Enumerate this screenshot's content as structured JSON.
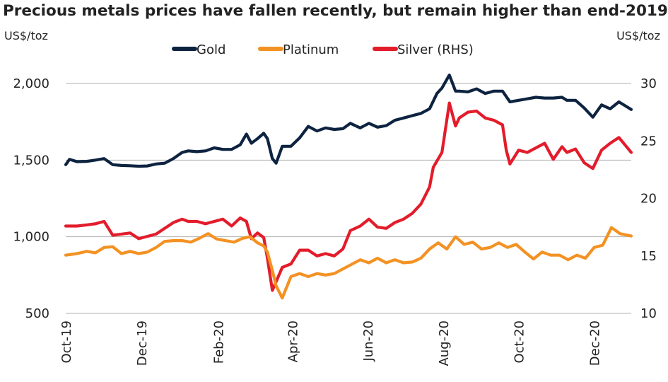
{
  "chart_data": {
    "type": "line",
    "title": "Precious metals prices have fallen recently, but remain higher than end-2019",
    "ylabel_left": "US$/toz",
    "ylabel_right": "US$/toz",
    "ylim_left": [
      500,
      2000
    ],
    "ylim_right": [
      10,
      30
    ],
    "y_ticks_left": [
      {
        "value": 500,
        "label": "500"
      },
      {
        "value": 1000,
        "label": "1,000"
      },
      {
        "value": 1500,
        "label": "1,500"
      },
      {
        "value": 2000,
        "label": "2,000"
      }
    ],
    "y_ticks_right": [
      {
        "value": 10,
        "label": "10"
      },
      {
        "value": 15,
        "label": "15"
      },
      {
        "value": 20,
        "label": "20"
      },
      {
        "value": 25,
        "label": "25"
      },
      {
        "value": 30,
        "label": "30"
      }
    ],
    "x_range": [
      "2019-10-01",
      "2020-12-31"
    ],
    "x_ticks": [
      {
        "value": "2019-10-01",
        "label": "Oct-19"
      },
      {
        "value": "2019-12-01",
        "label": "Dec-19"
      },
      {
        "value": "2020-02-01",
        "label": "Feb-20"
      },
      {
        "value": "2020-04-01",
        "label": "Apr-20"
      },
      {
        "value": "2020-06-01",
        "label": "Jun-20"
      },
      {
        "value": "2020-08-01",
        "label": "Aug-20"
      },
      {
        "value": "2020-10-01",
        "label": "Oct-20"
      },
      {
        "value": "2020-12-01",
        "label": "Dec-20"
      }
    ],
    "grid": "horizontal",
    "legend_position": "top",
    "series": [
      {
        "name": "Gold",
        "axis": "left",
        "color": "#0d2340",
        "x": [
          "2019-10-01",
          "2019-10-04",
          "2019-10-10",
          "2019-10-18",
          "2019-10-25",
          "2019-11-01",
          "2019-11-08",
          "2019-11-15",
          "2019-11-22",
          "2019-11-29",
          "2019-12-06",
          "2019-12-13",
          "2019-12-20",
          "2019-12-27",
          "2020-01-03",
          "2020-01-08",
          "2020-01-15",
          "2020-01-22",
          "2020-01-29",
          "2020-02-05",
          "2020-02-12",
          "2020-02-19",
          "2020-02-24",
          "2020-02-28",
          "2020-03-04",
          "2020-03-09",
          "2020-03-12",
          "2020-03-16",
          "2020-03-19",
          "2020-03-24",
          "2020-03-31",
          "2020-04-07",
          "2020-04-14",
          "2020-04-21",
          "2020-04-28",
          "2020-05-05",
          "2020-05-12",
          "2020-05-18",
          "2020-05-26",
          "2020-06-02",
          "2020-06-09",
          "2020-06-16",
          "2020-06-23",
          "2020-06-30",
          "2020-07-07",
          "2020-07-14",
          "2020-07-21",
          "2020-07-27",
          "2020-07-31",
          "2020-08-06",
          "2020-08-11",
          "2020-08-14",
          "2020-08-21",
          "2020-08-28",
          "2020-09-04",
          "2020-09-11",
          "2020-09-18",
          "2020-09-24",
          "2020-10-01",
          "2020-10-08",
          "2020-10-15",
          "2020-10-22",
          "2020-10-29",
          "2020-11-05",
          "2020-11-09",
          "2020-11-16",
          "2020-11-23",
          "2020-11-30",
          "2020-12-07",
          "2020-12-14",
          "2020-12-21",
          "2020-12-31"
        ],
        "values": [
          1470,
          1505,
          1490,
          1492,
          1500,
          1510,
          1470,
          1465,
          1463,
          1460,
          1462,
          1475,
          1480,
          1510,
          1550,
          1560,
          1555,
          1560,
          1580,
          1570,
          1570,
          1600,
          1670,
          1610,
          1640,
          1675,
          1640,
          1510,
          1480,
          1590,
          1590,
          1645,
          1720,
          1690,
          1710,
          1700,
          1705,
          1740,
          1710,
          1740,
          1715,
          1725,
          1760,
          1775,
          1790,
          1805,
          1835,
          1935,
          1970,
          2055,
          1950,
          1950,
          1945,
          1965,
          1935,
          1950,
          1950,
          1880,
          1890,
          1900,
          1910,
          1905,
          1905,
          1910,
          1890,
          1890,
          1840,
          1780,
          1860,
          1835,
          1880,
          1830
        ]
      },
      {
        "name": "Platinum",
        "axis": "left",
        "color": "#f39223",
        "x": [
          "2019-10-01",
          "2019-10-10",
          "2019-10-18",
          "2019-10-25",
          "2019-11-01",
          "2019-11-08",
          "2019-11-15",
          "2019-11-22",
          "2019-11-29",
          "2019-12-06",
          "2019-12-13",
          "2019-12-20",
          "2019-12-27",
          "2020-01-03",
          "2020-01-10",
          "2020-01-17",
          "2020-01-24",
          "2020-01-31",
          "2020-02-07",
          "2020-02-14",
          "2020-02-21",
          "2020-02-27",
          "2020-03-04",
          "2020-03-09",
          "2020-03-12",
          "2020-03-16",
          "2020-03-19",
          "2020-03-24",
          "2020-03-31",
          "2020-04-07",
          "2020-04-14",
          "2020-04-21",
          "2020-04-28",
          "2020-05-05",
          "2020-05-12",
          "2020-05-19",
          "2020-05-26",
          "2020-06-02",
          "2020-06-09",
          "2020-06-16",
          "2020-06-23",
          "2020-06-30",
          "2020-07-07",
          "2020-07-14",
          "2020-07-21",
          "2020-07-28",
          "2020-08-04",
          "2020-08-11",
          "2020-08-18",
          "2020-08-25",
          "2020-09-01",
          "2020-09-08",
          "2020-09-15",
          "2020-09-22",
          "2020-09-29",
          "2020-10-06",
          "2020-10-13",
          "2020-10-20",
          "2020-10-27",
          "2020-11-03",
          "2020-11-10",
          "2020-11-17",
          "2020-11-24",
          "2020-12-01",
          "2020-12-08",
          "2020-12-15",
          "2020-12-22",
          "2020-12-31"
        ],
        "values": [
          880,
          890,
          905,
          895,
          930,
          935,
          890,
          905,
          890,
          900,
          930,
          970,
          975,
          975,
          965,
          990,
          1020,
          985,
          975,
          965,
          990,
          1000,
          960,
          940,
          900,
          780,
          680,
          600,
          740,
          760,
          740,
          760,
          750,
          760,
          790,
          820,
          850,
          830,
          860,
          830,
          850,
          830,
          835,
          860,
          920,
          960,
          920,
          1000,
          950,
          965,
          920,
          930,
          960,
          930,
          950,
          900,
          855,
          900,
          880,
          880,
          850,
          880,
          860,
          930,
          945,
          1060,
          1020,
          1005
        ]
      },
      {
        "name": "Silver (RHS)",
        "axis": "right",
        "color": "#e31c2b",
        "x": [
          "2019-10-01",
          "2019-10-10",
          "2019-10-18",
          "2019-10-25",
          "2019-11-01",
          "2019-11-08",
          "2019-11-15",
          "2019-11-22",
          "2019-11-29",
          "2019-12-06",
          "2019-12-13",
          "2019-12-20",
          "2019-12-27",
          "2020-01-03",
          "2020-01-08",
          "2020-01-15",
          "2020-01-22",
          "2020-01-29",
          "2020-02-05",
          "2020-02-12",
          "2020-02-19",
          "2020-02-24",
          "2020-02-28",
          "2020-03-04",
          "2020-03-09",
          "2020-03-12",
          "2020-03-16",
          "2020-03-18",
          "2020-03-24",
          "2020-03-31",
          "2020-04-07",
          "2020-04-14",
          "2020-04-21",
          "2020-04-28",
          "2020-05-05",
          "2020-05-12",
          "2020-05-18",
          "2020-05-26",
          "2020-06-02",
          "2020-06-09",
          "2020-06-16",
          "2020-06-23",
          "2020-06-30",
          "2020-07-07",
          "2020-07-14",
          "2020-07-21",
          "2020-07-24",
          "2020-07-31",
          "2020-08-06",
          "2020-08-11",
          "2020-08-14",
          "2020-08-21",
          "2020-08-28",
          "2020-09-04",
          "2020-09-11",
          "2020-09-18",
          "2020-09-21",
          "2020-09-24",
          "2020-10-01",
          "2020-10-08",
          "2020-10-15",
          "2020-10-22",
          "2020-10-29",
          "2020-11-05",
          "2020-11-09",
          "2020-11-16",
          "2020-11-23",
          "2020-11-30",
          "2020-12-07",
          "2020-12-14",
          "2020-12-21",
          "2020-12-31"
        ],
        "values": [
          17.6,
          17.6,
          17.7,
          17.8,
          18.0,
          16.8,
          16.9,
          17.0,
          16.5,
          16.7,
          16.9,
          17.4,
          17.9,
          18.2,
          18.0,
          18.0,
          17.8,
          18.0,
          18.2,
          17.6,
          18.3,
          18.0,
          16.5,
          17.0,
          16.6,
          14.8,
          12.0,
          12.5,
          14.0,
          14.3,
          15.5,
          15.5,
          15.0,
          15.2,
          15.0,
          15.6,
          17.2,
          17.6,
          18.2,
          17.5,
          17.4,
          17.9,
          18.2,
          18.7,
          19.5,
          21.0,
          22.7,
          24.0,
          28.3,
          26.3,
          27.0,
          27.5,
          27.6,
          27.0,
          26.8,
          26.4,
          24.2,
          23.0,
          24.2,
          24.0,
          24.4,
          24.8,
          23.4,
          24.5,
          24.0,
          24.3,
          23.1,
          22.6,
          24.2,
          24.8,
          25.3,
          24.0
        ]
      }
    ]
  }
}
